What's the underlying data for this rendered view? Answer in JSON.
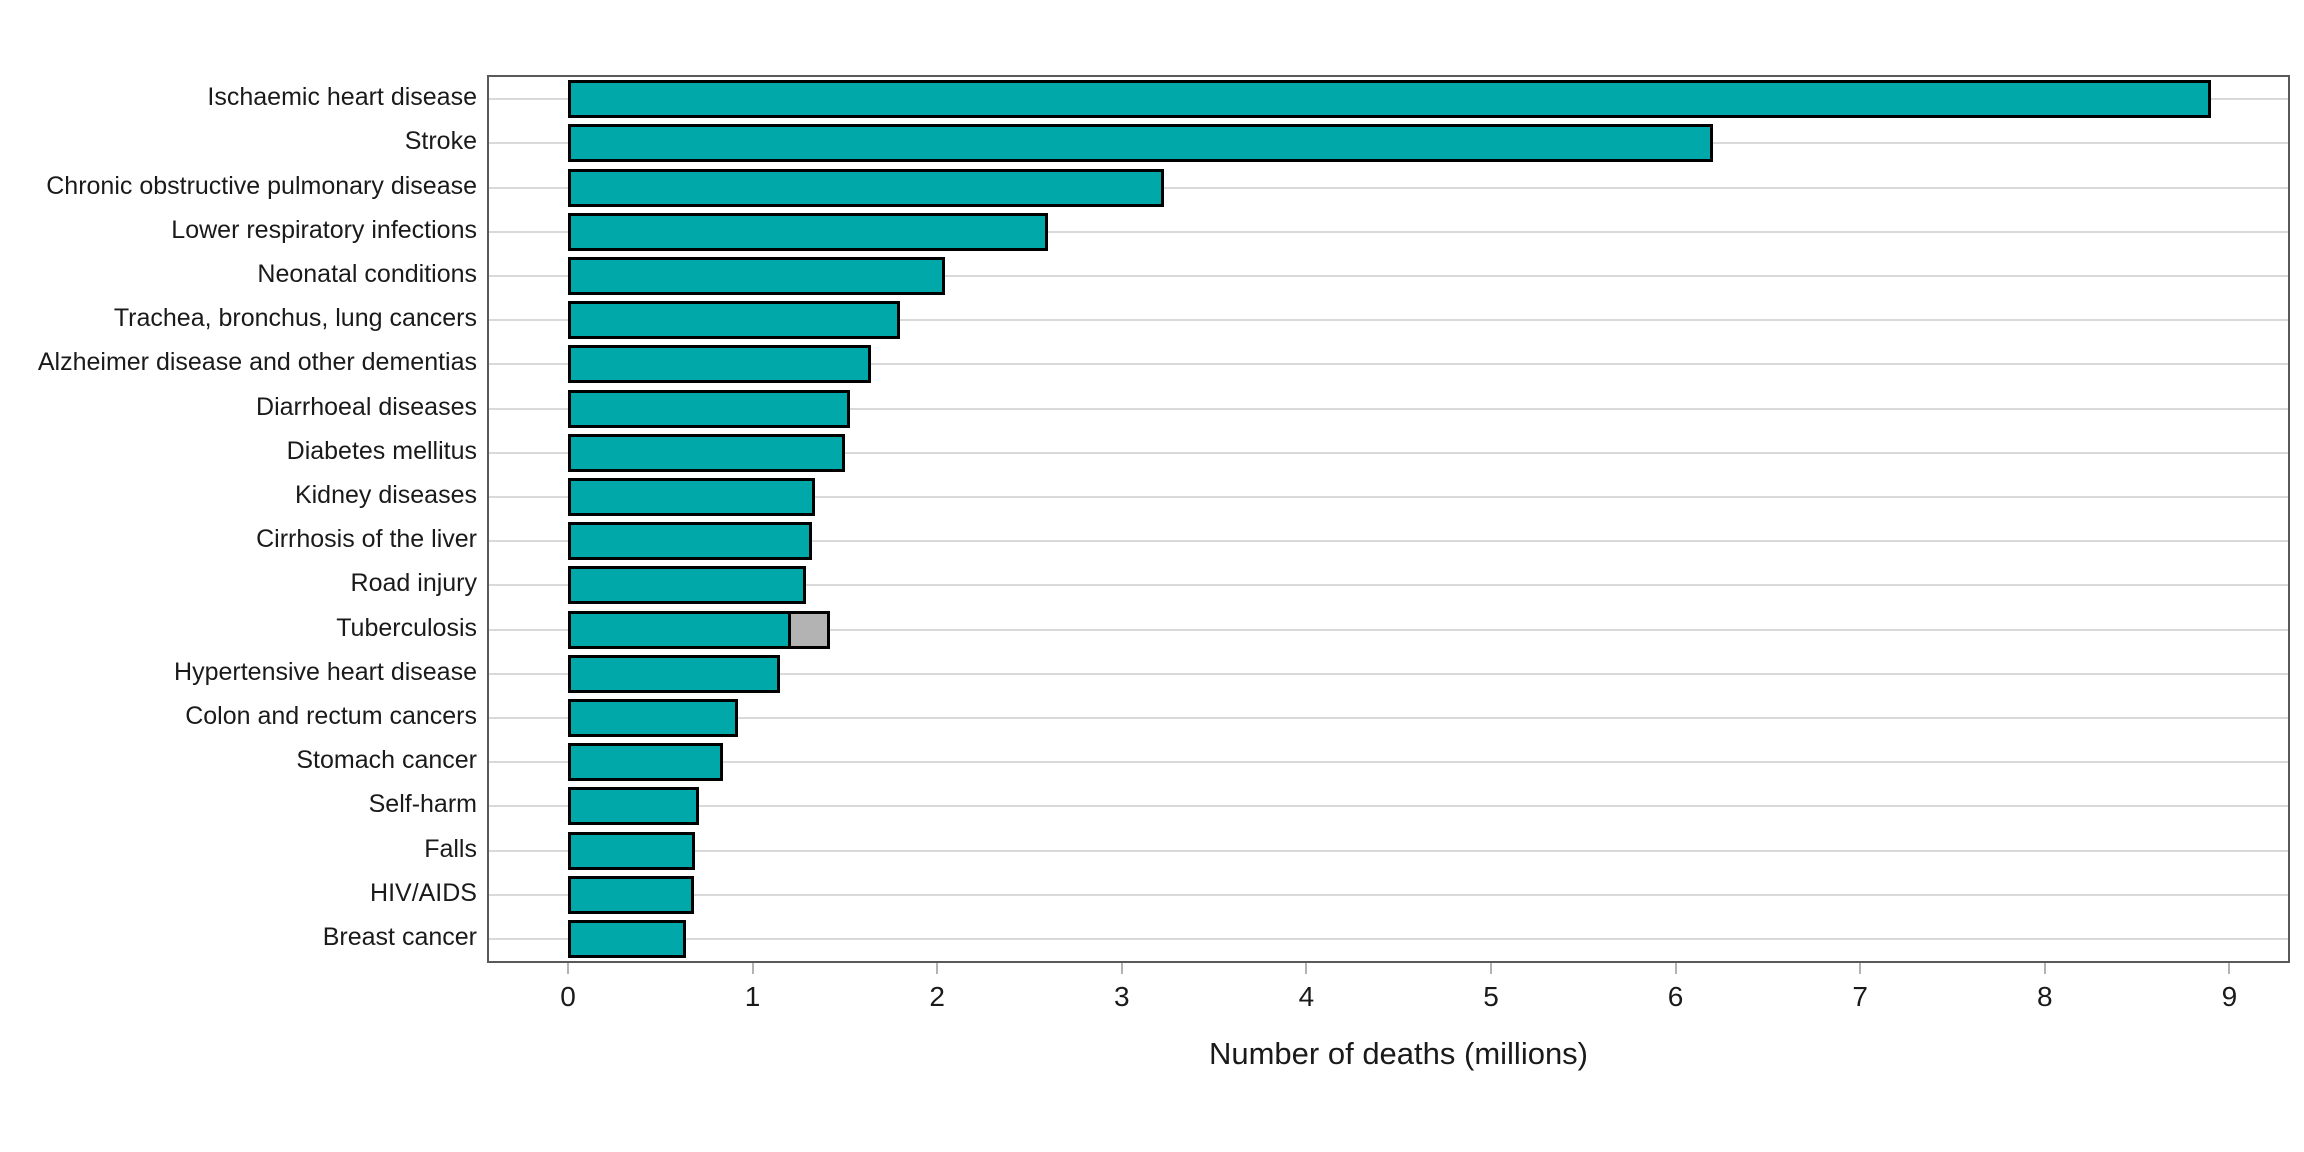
{
  "chart_data": {
    "type": "bar",
    "orientation": "horizontal",
    "title": "",
    "xlabel": "Number of deaths (millions)",
    "ylabel": "",
    "xlim": [
      0,
      9.3
    ],
    "xticks": [
      0,
      1,
      2,
      3,
      4,
      5,
      6,
      7,
      8,
      9
    ],
    "xtick_labels": [
      "0",
      "1",
      "2",
      "3",
      "4",
      "5",
      "6",
      "7",
      "8",
      "9"
    ],
    "grid": "horizontal light-gray line per category, behind bars",
    "legend": "none",
    "categories": [
      "Ischaemic heart disease",
      "Stroke",
      "Chronic obstructive pulmonary disease",
      "Lower respiratory infections",
      "Neonatal conditions",
      "Trachea, bronchus, lung cancers",
      "Alzheimer disease and other dementias",
      "Diarrhoeal diseases",
      "Diabetes mellitus",
      "Kidney diseases",
      "Cirrhosis of the liver",
      "Road injury",
      "Tuberculosis",
      "Hypertensive heart disease",
      "Colon and rectum cancers",
      "Stomach cancer",
      "Self-harm",
      "Falls",
      "HIV/AIDS",
      "Breast cancer"
    ],
    "series": [
      {
        "name": "deaths-primary",
        "color": "#00a8a9",
        "values": [
          8.9,
          6.2,
          3.23,
          2.6,
          2.04,
          1.8,
          1.64,
          1.53,
          1.5,
          1.34,
          1.32,
          1.29,
          1.21,
          1.15,
          0.92,
          0.84,
          0.71,
          0.69,
          0.68,
          0.64
        ]
      },
      {
        "name": "deaths-secondary-segment",
        "color": "#b3b3b3",
        "values": [
          0,
          0,
          0,
          0,
          0,
          0,
          0,
          0,
          0,
          0,
          0,
          0,
          0.21,
          0,
          0,
          0,
          0,
          0,
          0,
          0
        ]
      }
    ],
    "colors": {
      "bar_fill": "#00a8a9",
      "bar_secondary_fill": "#b3b3b3",
      "bar_border": "#000000",
      "gridline": "#d9d9d9",
      "panel_border": "#595959",
      "tick_mark": "#b3b3b3",
      "text": "#1a1a1a"
    }
  }
}
